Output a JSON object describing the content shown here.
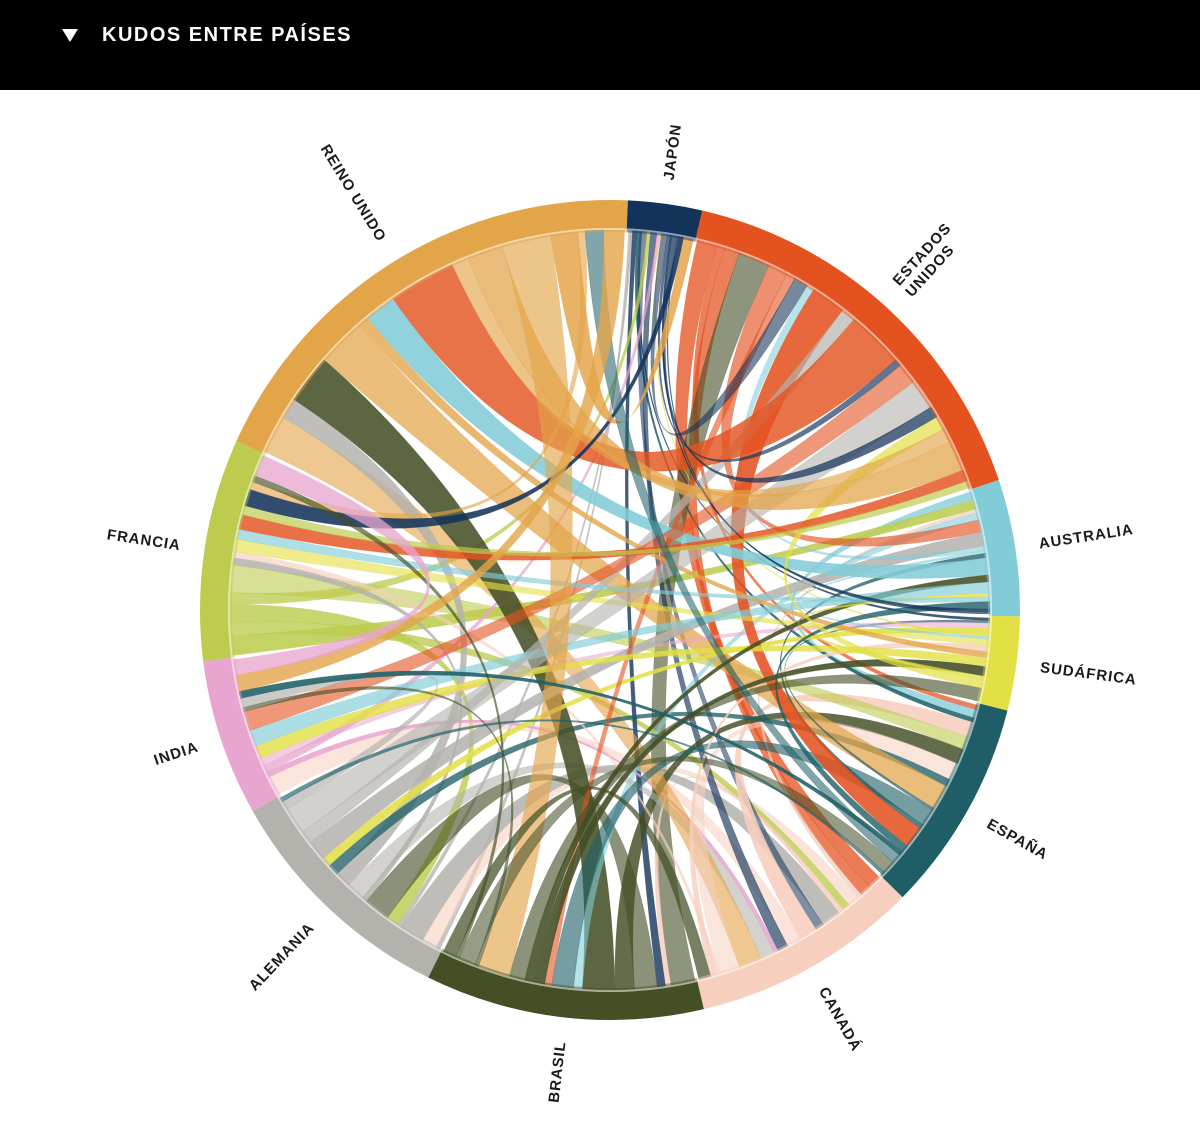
{
  "header": {
    "toggle_label": "KUDOS ENTRE PAÍSES",
    "toggle_icon": "triangle-down-icon"
  },
  "chart_data": {
    "type": "chord",
    "title": "KUDOS ENTRE PAÍSES",
    "groups": [
      {
        "name": "ESTADOS UNIDOS",
        "lines": [
          "ESTADOS",
          "UNIDOS"
        ],
        "color": "#e4521f",
        "share": 0.145
      },
      {
        "name": "AUSTRALIA",
        "lines": [
          "AUSTRALIA"
        ],
        "color": "#82ccd8",
        "share": 0.048
      },
      {
        "name": "SUDÁFRICA",
        "lines": [
          "SUDÁFRICA"
        ],
        "color": "#e3e045",
        "share": 0.033
      },
      {
        "name": "ESPAÑA",
        "lines": [
          "ESPAÑA"
        ],
        "color": "#1f5e66",
        "share": 0.075
      },
      {
        "name": "CANADÁ",
        "lines": [
          "CANADÁ"
        ],
        "color": "#f6cfbf",
        "share": 0.08
      },
      {
        "name": "BRASIL",
        "lines": [
          "BRASIL"
        ],
        "color": "#444f26",
        "share": 0.098
      },
      {
        "name": "ALEMANIA",
        "lines": [
          "ALEMANIA"
        ],
        "color": "#b4b2ad",
        "share": 0.085
      },
      {
        "name": "INDIA",
        "lines": [
          "INDIA"
        ],
        "color": "#e8a5cf",
        "share": 0.055
      },
      {
        "name": "FRANCIA",
        "lines": [
          "FRANCIA"
        ],
        "color": "#bdcc4e",
        "share": 0.078
      },
      {
        "name": "REINO UNIDO",
        "lines": [
          "REINO UNIDO"
        ],
        "color": "#e3a54a",
        "share": 0.169
      },
      {
        "name": "JAPÓN",
        "lines": [
          "JAPÓN"
        ],
        "color": "#14335a",
        "share": 0.026
      }
    ],
    "gap_degrees": 0,
    "legend": "none",
    "grid": false
  }
}
